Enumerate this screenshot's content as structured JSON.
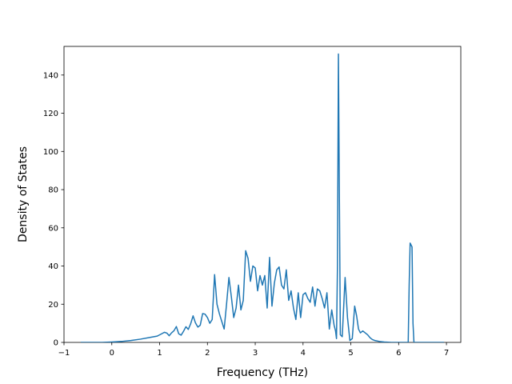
{
  "chart_data": {
    "type": "line",
    "title": "",
    "xlabel": "Frequency (THz)",
    "ylabel": "Density of States",
    "xlim": [
      -1.0,
      7.3
    ],
    "ylim": [
      0,
      155
    ],
    "x_ticks": [
      -1,
      0,
      1,
      2,
      3,
      4,
      5,
      6,
      7
    ],
    "y_ticks": [
      0,
      20,
      40,
      60,
      80,
      100,
      120,
      140
    ],
    "grid": false,
    "legend": "none",
    "line_color": "#1f77b4",
    "series": [
      {
        "x": [
          -0.65,
          -0.4,
          -0.2,
          0.0,
          0.2,
          0.4,
          0.6,
          0.8,
          0.95,
          1.05,
          1.1,
          1.15,
          1.2,
          1.25,
          1.3,
          1.35,
          1.4,
          1.45,
          1.5,
          1.55,
          1.6,
          1.65,
          1.7,
          1.75,
          1.8,
          1.85,
          1.9,
          1.95,
          2.0,
          2.05,
          2.1,
          2.15,
          2.2,
          2.25,
          2.3,
          2.35,
          2.4,
          2.45,
          2.5,
          2.55,
          2.6,
          2.65,
          2.7,
          2.75,
          2.8,
          2.85,
          2.9,
          2.95,
          3.0,
          3.05,
          3.1,
          3.15,
          3.2,
          3.25,
          3.3,
          3.35,
          3.4,
          3.45,
          3.5,
          3.55,
          3.6,
          3.65,
          3.7,
          3.75,
          3.8,
          3.85,
          3.9,
          3.95,
          4.0,
          4.05,
          4.1,
          4.15,
          4.2,
          4.25,
          4.3,
          4.35,
          4.4,
          4.45,
          4.5,
          4.55,
          4.6,
          4.65,
          4.68,
          4.7,
          4.72,
          4.74,
          4.78,
          4.82,
          4.88,
          4.93,
          4.98,
          5.03,
          5.08,
          5.12,
          5.16,
          5.2,
          5.25,
          5.3,
          5.35,
          5.4,
          5.45,
          5.5,
          5.6,
          5.7,
          5.85,
          6.0,
          6.15,
          6.2,
          6.22,
          6.24,
          6.26,
          6.28,
          6.3,
          6.32,
          6.34,
          6.36,
          6.5,
          6.7,
          6.95
        ],
        "y": [
          0.0,
          0.0,
          0.0,
          0.2,
          0.5,
          1.0,
          1.7,
          2.6,
          3.3,
          4.6,
          5.3,
          4.9,
          3.5,
          5.0,
          6.1,
          8.3,
          4.5,
          3.8,
          5.8,
          8.2,
          6.8,
          9.8,
          13.9,
          10.2,
          8.0,
          9.0,
          15.1,
          14.8,
          13.0,
          10.0,
          12.0,
          35.5,
          20.0,
          15.0,
          11.0,
          7.0,
          20.0,
          34.0,
          24.0,
          13.0,
          18.0,
          30.0,
          17.0,
          22.0,
          48.0,
          44.0,
          32.0,
          40.0,
          39.0,
          27.0,
          35.0,
          30.0,
          35.0,
          18.0,
          44.5,
          19.0,
          31.0,
          38.0,
          39.5,
          30.0,
          28.0,
          38.0,
          22.0,
          27.0,
          18.0,
          12.0,
          26.0,
          13.0,
          25.0,
          26.0,
          23.0,
          21.0,
          29.0,
          19.0,
          28.0,
          27.0,
          23.0,
          18.0,
          26.0,
          7.0,
          17.0,
          9.0,
          6.0,
          2.0,
          40.0,
          151.0,
          4.0,
          3.0,
          34.0,
          13.0,
          1.0,
          2.0,
          19.0,
          14.0,
          7.0,
          5.0,
          6.0,
          5.0,
          4.0,
          2.5,
          1.5,
          1.0,
          0.5,
          0.2,
          0.0,
          0.0,
          0.0,
          0.0,
          30.0,
          52.0,
          51.0,
          50.0,
          10.0,
          0.0,
          0.0,
          0.0,
          0.0,
          0.0,
          0.0
        ]
      }
    ]
  }
}
